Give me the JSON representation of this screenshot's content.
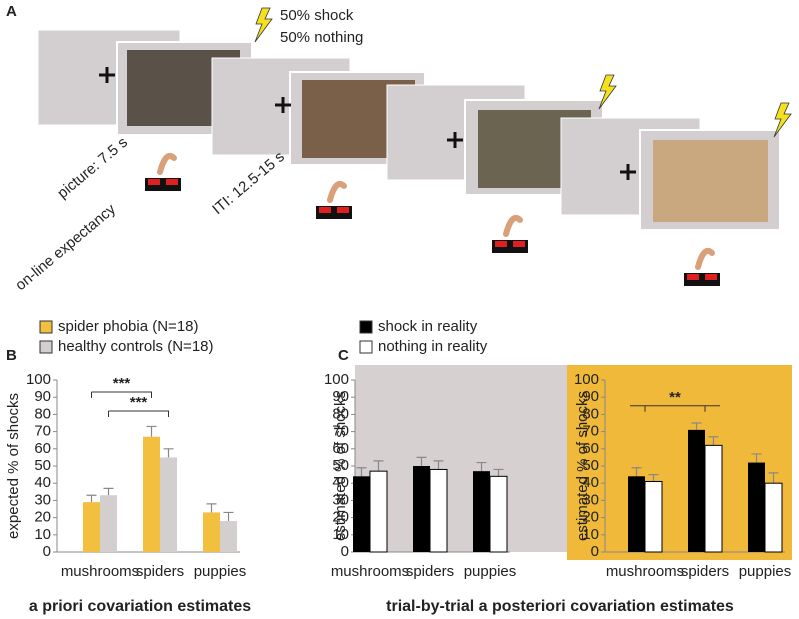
{
  "panels": {
    "A": "A",
    "B": "B",
    "C": "C"
  },
  "diagram": {
    "shock_text": "50% shock",
    "nothing_text": "50% nothing",
    "picture_time": "picture: 7.5 s",
    "iti_time": "ITI: 12.5-15 s",
    "expectancy": "on-line expectancy"
  },
  "captions": [
    "a priori  covariation  estimates",
    "trial-by-trial  a posteriori  covariation  estimates"
  ],
  "chart_data": [
    {
      "type": "bar",
      "ylabel": "expected % of shocks",
      "categories": [
        "mushrooms",
        "spiders",
        "puppies"
      ],
      "series": [
        {
          "name": "spider phobia (N=18)",
          "color": "#f2bf3e",
          "values": [
            29,
            67,
            23
          ],
          "errors": [
            4,
            6,
            5
          ]
        },
        {
          "name": "healthy controls (N=18)",
          "color": "#d3cfcf",
          "values": [
            33,
            55,
            18
          ],
          "errors": [
            4,
            5,
            5
          ]
        }
      ],
      "ylim": [
        0,
        100
      ],
      "yticks": [
        0,
        10,
        20,
        30,
        40,
        50,
        60,
        70,
        80,
        90,
        100
      ],
      "annotations": [
        "***",
        "***"
      ]
    },
    {
      "type": "bar",
      "ylabel": "estimated % of shocks",
      "categories": [
        "mushrooms",
        "spiders",
        "puppies"
      ],
      "background": "#d6d0d1",
      "series": [
        {
          "name": "shock in reality",
          "color": "#000000",
          "values": [
            44,
            50,
            47
          ],
          "errors": [
            5,
            5,
            5
          ]
        },
        {
          "name": "nothing in reality",
          "color": "#ffffff",
          "values": [
            47,
            48,
            44
          ],
          "errors": [
            6,
            5,
            4
          ]
        }
      ],
      "ylim": [
        0,
        100
      ],
      "yticks": [
        0,
        10,
        20,
        30,
        40,
        50,
        60,
        70,
        80,
        90,
        100
      ]
    },
    {
      "type": "bar",
      "ylabel": "estimated % of shocks",
      "categories": [
        "mushrooms",
        "spiders",
        "puppies"
      ],
      "background": "#f0b93a",
      "series": [
        {
          "color": "#000000",
          "values": [
            44,
            71,
            52
          ],
          "errors": [
            5,
            4,
            5
          ]
        },
        {
          "color": "#ffffff",
          "values": [
            41,
            62,
            40
          ],
          "errors": [
            4,
            5,
            6
          ]
        }
      ],
      "ylim": [
        0,
        100
      ],
      "yticks": [
        0,
        10,
        20,
        30,
        40,
        50,
        60,
        70,
        80,
        90,
        100
      ],
      "annotations": [
        "**"
      ]
    }
  ]
}
